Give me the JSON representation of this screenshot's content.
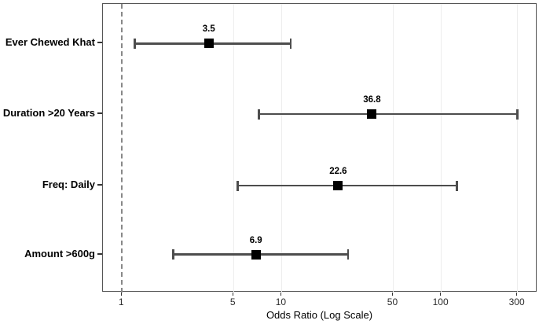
{
  "figure": {
    "background": "#ffffff"
  },
  "chart_data": {
    "type": "scatter",
    "subtype": "forest-plot-odds-ratios",
    "title": "",
    "xlabel": "Odds Ratio (Log Scale)",
    "ylabel": "",
    "x_scale": "log10",
    "xlim": [
      0.76,
      400
    ],
    "grid": "on",
    "legend": "none",
    "x_ticks": [
      {
        "value": 1,
        "label": "1"
      },
      {
        "value": 5,
        "label": "5"
      },
      {
        "value": 10,
        "label": "10"
      },
      {
        "value": 50,
        "label": "50"
      },
      {
        "value": 100,
        "label": "100"
      },
      {
        "value": 300,
        "label": "300"
      }
    ],
    "major_gridlines_at": [
      5,
      10,
      50,
      100,
      300
    ],
    "reference_line_x": 1,
    "categories": [
      "Ever Chewed Khat",
      "Duration >20 Years",
      "Freq: Daily",
      "Amount >600g"
    ],
    "rows": [
      {
        "category": "Ever Chewed Khat",
        "odds_ratio": 3.5,
        "value_label": "3.5",
        "ci_low": 1.2,
        "ci_high": 11.4
      },
      {
        "category": "Duration >20 Years",
        "odds_ratio": 36.8,
        "value_label": "36.8",
        "ci_low": 7.2,
        "ci_high": 300
      },
      {
        "category": "Freq: Daily",
        "odds_ratio": 22.6,
        "value_label": "22.6",
        "ci_low": 5.3,
        "ci_high": 125
      },
      {
        "category": "Amount >600g",
        "odds_ratio": 6.9,
        "value_label": "6.9",
        "ci_low": 2.1,
        "ci_high": 26
      }
    ],
    "colors": {
      "error_bar": "#4d4d4d",
      "marker": "#000000",
      "gridline": "#ededed",
      "reference_line": "#888888",
      "panel_border": "#555555",
      "axis_tick": "#333333",
      "axis_text": "#2b2b2b",
      "label_text": "#000000"
    }
  }
}
